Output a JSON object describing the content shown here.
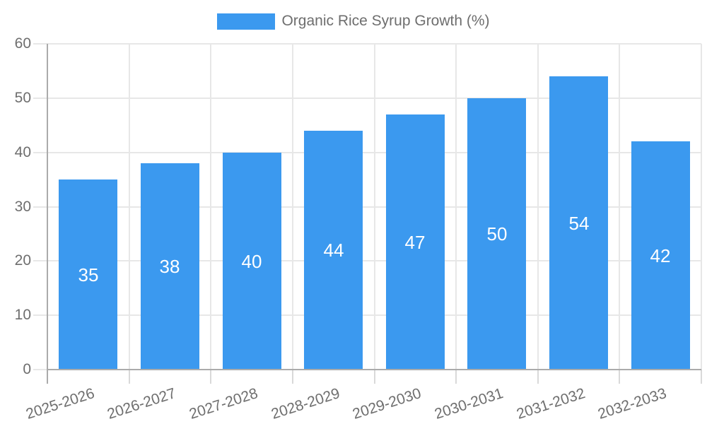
{
  "legend": {
    "label": "Organic Rice Syrup Growth (%)"
  },
  "colors": {
    "bar": "#3B99EF",
    "grid": "#E7E7E7",
    "x_tick": "#D9D9D9",
    "axis": "#ABABAB",
    "tick_text": "#6E6E6E",
    "bar_label_text": "#FFFFFF"
  },
  "chart_data": {
    "type": "bar",
    "title": "",
    "xlabel": "",
    "ylabel": "",
    "categories": [
      "2025-2026",
      "2026-2027",
      "2027-2028",
      "2028-2029",
      "2029-2030",
      "2030-2031",
      "2031-2032",
      "2032-2033"
    ],
    "series": [
      {
        "name": "Organic Rice Syrup Growth (%)",
        "values": [
          35,
          38,
          40,
          44,
          47,
          50,
          54,
          42
        ]
      }
    ],
    "bar_value_labels": [
      "35",
      "38",
      "40",
      "44",
      "47",
      "50",
      "54",
      "42"
    ],
    "ylim": [
      0,
      60
    ],
    "yticks": [
      0,
      10,
      20,
      30,
      40,
      50,
      60
    ],
    "ytick_labels": [
      "0",
      "10",
      "20",
      "30",
      "40",
      "50",
      "60"
    ],
    "grid": true,
    "legend_position": "top-center",
    "value_labels_position": "center-inside"
  }
}
